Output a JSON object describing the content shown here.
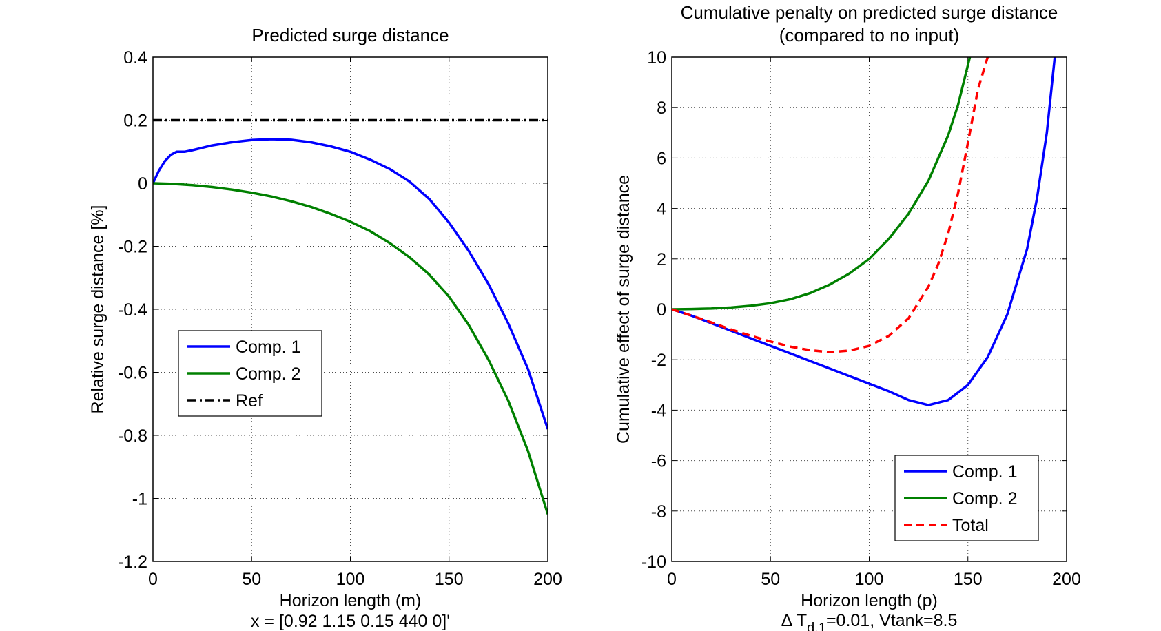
{
  "chart_data": [
    {
      "type": "line",
      "title": "Predicted surge distance",
      "xlabel": "Horizon length (m)",
      "xlabel2": "x = [0.92 1.15 0.15 440 0]'",
      "ylabel": "Relative surge distance [%]",
      "xlim": [
        0,
        200
      ],
      "ylim": [
        -1.2,
        0.4
      ],
      "xticks": [
        "0",
        "50",
        "100",
        "150",
        "200"
      ],
      "yticks": [
        "0.4",
        "0.2",
        "0",
        "-0.2",
        "-0.4",
        "-0.6",
        "-0.8",
        "-1",
        "-1.2"
      ],
      "grid": true,
      "legend_position": "center-left",
      "series": [
        {
          "name": "Comp. 1",
          "color": "#0000ff",
          "style": "solid",
          "x": [
            0,
            3,
            6,
            9,
            12,
            16,
            20,
            30,
            40,
            50,
            60,
            70,
            80,
            90,
            100,
            110,
            120,
            130,
            140,
            150,
            160,
            170,
            180,
            190,
            200
          ],
          "y": [
            0,
            0.04,
            0.07,
            0.09,
            0.1,
            0.1,
            0.105,
            0.12,
            0.13,
            0.137,
            0.14,
            0.138,
            0.13,
            0.117,
            0.1,
            0.075,
            0.045,
            0.005,
            -0.05,
            -0.125,
            -0.215,
            -0.32,
            -0.445,
            -0.59,
            -0.78
          ]
        },
        {
          "name": "Comp. 2",
          "color": "#008000",
          "style": "solid",
          "x": [
            0,
            10,
            20,
            30,
            40,
            50,
            60,
            70,
            80,
            90,
            100,
            110,
            120,
            130,
            140,
            150,
            160,
            170,
            180,
            190,
            200
          ],
          "y": [
            0,
            -0.002,
            -0.006,
            -0.012,
            -0.02,
            -0.03,
            -0.042,
            -0.057,
            -0.075,
            -0.097,
            -0.122,
            -0.152,
            -0.19,
            -0.235,
            -0.29,
            -0.36,
            -0.45,
            -0.56,
            -0.69,
            -0.85,
            -1.05
          ]
        },
        {
          "name": "Ref",
          "color": "#000000",
          "style": "dashdot",
          "x": [
            0,
            200
          ],
          "y": [
            0.2,
            0.2
          ]
        }
      ]
    },
    {
      "type": "line",
      "title": "Cumulative penalty on predicted surge distance",
      "title2": "(compared to no input)",
      "xlabel": "Horizon length (p)",
      "xlabel2_prefix": "Δ T",
      "xlabel2_sub": "d,1",
      "xlabel2_suffix": "=0.01, Vtank=8.5",
      "ylabel": "Cumulative effect of surge distance",
      "xlim": [
        0,
        200
      ],
      "ylim": [
        -10,
        10
      ],
      "xticks": [
        "0",
        "50",
        "100",
        "150",
        "200"
      ],
      "yticks": [
        "10",
        "8",
        "6",
        "4",
        "2",
        "0",
        "-2",
        "-4",
        "-6",
        "-8",
        "-10"
      ],
      "grid": true,
      "legend_position": "bottom-right",
      "series": [
        {
          "name": "Comp. 1",
          "color": "#0000ff",
          "style": "solid",
          "x": [
            0,
            10,
            20,
            30,
            40,
            50,
            60,
            70,
            80,
            90,
            100,
            110,
            120,
            130,
            140,
            150,
            160,
            170,
            180,
            185,
            190,
            194
          ],
          "y": [
            0,
            -0.25,
            -0.55,
            -0.85,
            -1.15,
            -1.45,
            -1.75,
            -2.05,
            -2.35,
            -2.65,
            -2.95,
            -3.25,
            -3.6,
            -3.8,
            -3.6,
            -3.0,
            -1.9,
            -0.2,
            2.4,
            4.4,
            7.0,
            10
          ]
        },
        {
          "name": "Comp. 2",
          "color": "#008000",
          "style": "solid",
          "x": [
            0,
            10,
            20,
            30,
            40,
            50,
            60,
            70,
            80,
            90,
            100,
            110,
            120,
            130,
            140,
            145,
            151
          ],
          "y": [
            0,
            0.01,
            0.03,
            0.07,
            0.14,
            0.24,
            0.4,
            0.64,
            0.98,
            1.42,
            2.0,
            2.8,
            3.8,
            5.1,
            6.9,
            8.1,
            10
          ]
        },
        {
          "name": "Total",
          "color": "#ff0000",
          "style": "dashed",
          "x": [
            0,
            10,
            20,
            30,
            40,
            50,
            60,
            70,
            80,
            90,
            100,
            110,
            120,
            130,
            135,
            140,
            145,
            150,
            155,
            160
          ],
          "y": [
            0,
            -0.25,
            -0.52,
            -0.8,
            -1.05,
            -1.28,
            -1.48,
            -1.62,
            -1.7,
            -1.64,
            -1.45,
            -1.05,
            -0.35,
            0.9,
            1.8,
            3.0,
            4.6,
            6.6,
            8.7,
            10
          ]
        }
      ]
    }
  ]
}
